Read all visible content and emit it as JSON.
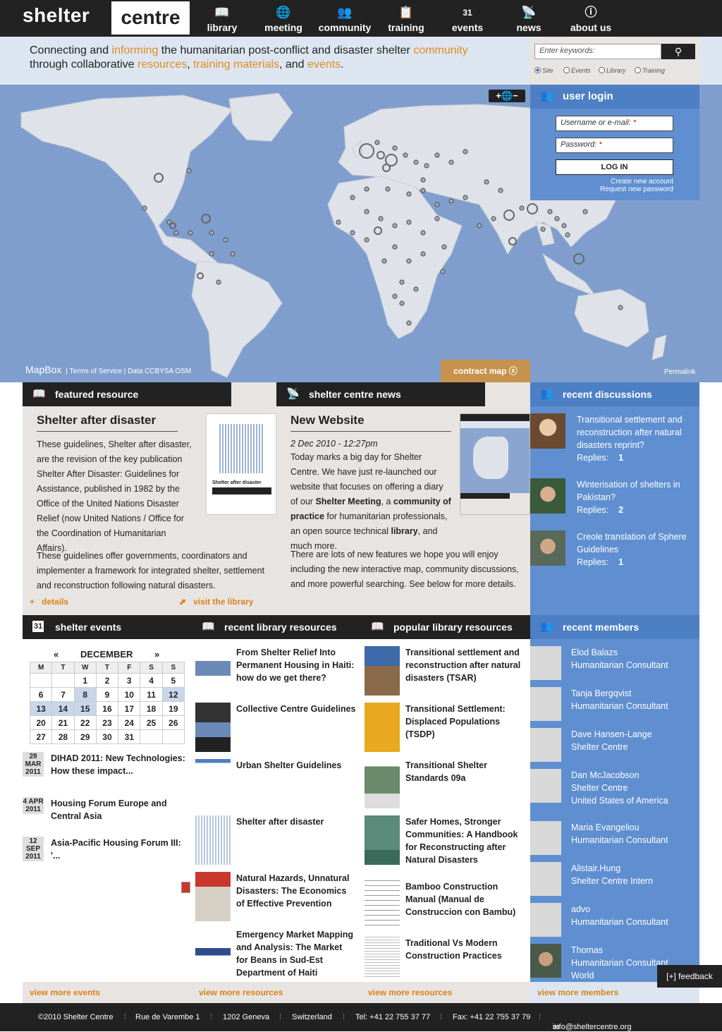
{
  "header": {
    "logo_left": "shelter",
    "logo_right": "centre",
    "nav": [
      {
        "label": "library",
        "icon": "book-icon",
        "glyph": "📖"
      },
      {
        "label": "meeting",
        "icon": "globe-icon",
        "glyph": "🌐"
      },
      {
        "label": "community",
        "icon": "people-icon",
        "glyph": "👥"
      },
      {
        "label": "training",
        "icon": "board-icon",
        "glyph": "📋"
      },
      {
        "label": "events",
        "icon": "calendar-icon",
        "glyph": "31"
      },
      {
        "label": "news",
        "icon": "broadcast-icon",
        "glyph": "📡"
      },
      {
        "label": "about us",
        "icon": "info-icon",
        "glyph": "ⓘ"
      }
    ]
  },
  "tagline": {
    "p1": "Connecting and ",
    "w1": "informing",
    "p2": " the humanitarian post-conflict and disaster shelter ",
    "w2": "community",
    "p3": "through collaborative ",
    "w3": "resources",
    "p4": ", ",
    "w4": "training materials",
    "p5": ", and ",
    "w5": "events",
    "p6": "."
  },
  "search": {
    "placeholder": "Enter keywords:",
    "button_icon": "search-icon",
    "options": [
      "Site",
      "Events",
      "Library",
      "Training"
    ],
    "selected": "Site"
  },
  "map": {
    "zoom_label": "+🌐−",
    "mapbox": "MapBox",
    "terms": "| Terms of Service | Data CCBYSA OSM",
    "contract": "contract map",
    "contract_icon": "ⓧ",
    "permalink": "Permalink"
  },
  "login": {
    "title": "user login",
    "username": "Username or e-mail:",
    "password": "Password:",
    "required": "*",
    "button": "LOG IN",
    "create": "Create new account",
    "request": "Request new password"
  },
  "featured": {
    "header": "featured resource",
    "title": "Shelter after disaster",
    "para1": "These guidelines, Shelter after disaster, are the revision of the key publication Shelter After Disaster: Guidelines for Assistance, published in 1982 by the Office of the United Nations Disaster Relief (now United Nations / Office for the Coordination of Humanitarian Affairs).",
    "para2": "These guidelines offer governments, coordinators and implementer a framework for integrated shelter, settlement and reconstruction following natural disasters.",
    "details": "details",
    "library": "visit the library",
    "cover_title": "Shelter after disaster"
  },
  "news": {
    "header": "shelter centre news",
    "title": "New Website",
    "date": "2 Dec 2010 - 12:27pm",
    "para1a": "Today marks a big day for Shelter Centre. We have just re-launched our website that focuses on offering a diary of our ",
    "b1": "Shelter Meeting",
    "para1b": ", a ",
    "b2": "community of practice",
    "para1c": " for humanitarian professionals, an open source technical ",
    "b3": "library",
    "para1d": ", and much more.",
    "para2": "There are lots of new features we hope you will enjoy including the new interactive map, community discussions, and more powerful searching.  See below for more details."
  },
  "discussions": {
    "header": "recent discussions",
    "items": [
      {
        "title": "Transitional settlement and reconstruction after natural disasters reprint?",
        "replies_label": "Replies:",
        "replies": "1"
      },
      {
        "title": "Winterisation of shelters in Pakistan?",
        "replies_label": "Replies:",
        "replies": "2"
      },
      {
        "title": "Creole translation of Sphere Guidelines",
        "replies_label": "Replies:",
        "replies": "1"
      }
    ]
  },
  "events": {
    "header": "shelter events",
    "prev": "«",
    "next": "»",
    "month": "DECEMBER",
    "weekdays": [
      "M",
      "T",
      "W",
      "T",
      "F",
      "S",
      "S"
    ],
    "weeks": [
      [
        "",
        "",
        "1",
        "2",
        "3",
        "4",
        "5"
      ],
      [
        "6",
        "7",
        "8",
        "9",
        "10",
        "11",
        "12"
      ],
      [
        "13",
        "14",
        "15",
        "16",
        "17",
        "18",
        "19"
      ],
      [
        "20",
        "21",
        "22",
        "23",
        "24",
        "25",
        "26"
      ],
      [
        "27",
        "28",
        "29",
        "30",
        "31",
        "",
        ""
      ]
    ],
    "list": [
      {
        "d1": "28",
        "d2": "MAR",
        "d3": "2011",
        "title": "DIHAD 2011: New Technologies: How these impact..."
      },
      {
        "d1": "4 APR",
        "d2": "2011",
        "d3": "",
        "title": "Housing Forum Europe and Central Asia"
      },
      {
        "d1": "12",
        "d2": "SEP",
        "d3": "2011",
        "title": "Asia-Pacific Housing Forum III: '..."
      }
    ],
    "view_more": "view more events"
  },
  "recent_resources": {
    "header": "recent library resources",
    "items": [
      "From Shelter Relief Into Permanent Housing in Haiti: how do we get there?",
      "Collective Centre Guidelines",
      "Urban Shelter Guidelines",
      "Shelter after disaster",
      "Natural Hazards, Unnatural Disasters: The Economics of Effective Prevention",
      "Emergency Market Mapping and Analysis: The Market for Beans in Sud-Est Department of Haiti"
    ],
    "view_more": "view more resources"
  },
  "popular_resources": {
    "header": "popular library resources",
    "items": [
      "Transitional settlement and reconstruction after natural disasters (TSAR)",
      "Transitional Settlement: Displaced Populations (TSDP)",
      "Transitional Shelter Standards 09a",
      "Safer Homes, Stronger Communities: A Handbook for Reconstructing after Natural Disasters",
      "Bamboo Construction Manual (Manual de Construccion con Bambu)",
      "Traditional Vs Modern Construction Practices"
    ],
    "view_more": "view more resources"
  },
  "members": {
    "header": "recent members",
    "items": [
      {
        "name": "Elod Balazs",
        "role": "Humanitarian Consultant",
        "extra": ""
      },
      {
        "name": "Tanja Bergqvist",
        "role": "Humanitarian Consultant",
        "extra": ""
      },
      {
        "name": "Dave Hansen-Lange",
        "role": "Shelter Centre",
        "extra": ""
      },
      {
        "name": "Dan McJacobson",
        "role": "Shelter Centre",
        "extra": "United States of America"
      },
      {
        "name": "Maria Evangeliou",
        "role": "Humanitarian Consultant",
        "extra": ""
      },
      {
        "name": "Alistair.Hung",
        "role": "Shelter Centre Intern",
        "extra": ""
      },
      {
        "name": "advo",
        "role": "Humanitarian Consultant",
        "extra": ""
      },
      {
        "name": "Thomas",
        "role": "Humanitarian Consultant",
        "extra": "World"
      }
    ],
    "view_more": "view more members"
  },
  "feedback": "[+] feedback",
  "footer": [
    "©2010 Shelter Centre",
    "Rue de Varembe 1",
    "1202 Geneva",
    "Switzerland",
    "Tel: +41 22 755 37 77",
    "Fax: +41 22 755 37 79",
    "info@sheltercentre.org"
  ],
  "colors": {
    "accent": "#e08a1e",
    "blue_panel": "#5f8fd0",
    "dark": "#222222",
    "map_sea": "#7f9ecd"
  }
}
